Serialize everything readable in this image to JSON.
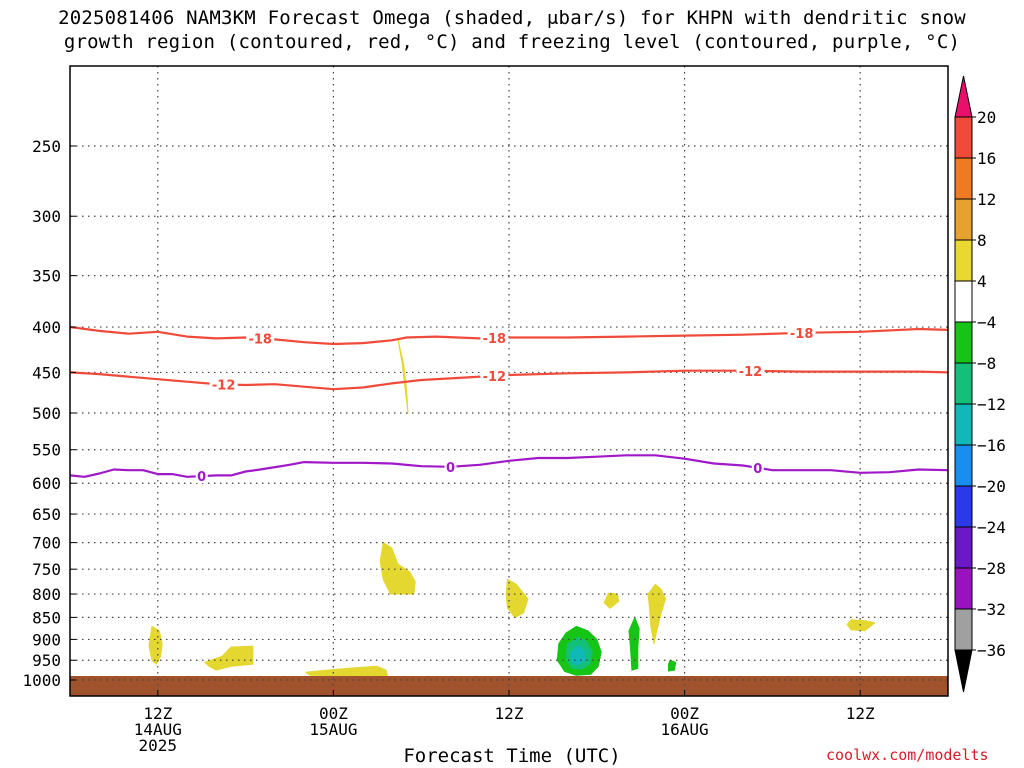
{
  "title_line1": "2025081406 NAM3KM Forecast Omega (shaded, μbar/s) for KHPN with dendritic snow",
  "title_line2": "growth region (contoured, red, °C) and freezing level (contoured, purple, °C)",
  "credit": "coolwx.com/modelts",
  "chart_data": {
    "type": "contour-timeheight",
    "xlabel": "Forecast Time (UTC)",
    "ylabel": "",
    "x_range_hours": [
      0,
      60
    ],
    "y_axis_scale": "log-pressure",
    "y_range_hPa": [
      200,
      1030
    ],
    "x_ticks": [
      {
        "hour": 6,
        "lines": [
          "12Z",
          "14AUG",
          "2025"
        ]
      },
      {
        "hour": 18,
        "lines": [
          "00Z",
          "15AUG"
        ]
      },
      {
        "hour": 30,
        "lines": [
          "12Z"
        ]
      },
      {
        "hour": 42,
        "lines": [
          "00Z",
          "16AUG"
        ]
      },
      {
        "hour": 54,
        "lines": [
          "12Z"
        ]
      }
    ],
    "y_ticks": [
      250,
      300,
      350,
      400,
      450,
      500,
      550,
      600,
      650,
      700,
      750,
      800,
      850,
      900,
      950,
      1000
    ],
    "grid": true,
    "colorbar": {
      "label_values": [
        "20",
        "16",
        "12",
        "8",
        "4",
        "−4",
        "−8",
        "−12",
        "−16",
        "−20",
        "−24",
        "−28",
        "−32",
        "−36"
      ],
      "colors": [
        "#e8106a",
        "#f24a3a",
        "#f07a22",
        "#e6a12e",
        "#e8d830",
        "#ffffff",
        "#16c416",
        "#13c07a",
        "#10b8b8",
        "#188ff0",
        "#2a3ae8",
        "#6a18c8",
        "#9a12c0",
        "#a0a0a0",
        "#000000"
      ]
    },
    "contours": [
      {
        "label": "-18",
        "color": "#f04a3a",
        "points": [
          [
            0,
            400
          ],
          [
            2,
            404
          ],
          [
            4,
            407
          ],
          [
            6,
            405
          ],
          [
            8,
            410
          ],
          [
            10,
            412
          ],
          [
            12,
            411
          ],
          [
            14,
            413
          ],
          [
            16,
            416
          ],
          [
            18,
            418
          ],
          [
            20,
            417
          ],
          [
            22,
            414
          ],
          [
            23,
            411
          ],
          [
            25,
            410
          ],
          [
            28,
            412
          ],
          [
            30,
            411
          ],
          [
            34,
            411
          ],
          [
            38,
            410
          ],
          [
            42,
            409
          ],
          [
            46,
            408
          ],
          [
            50,
            406
          ],
          [
            54,
            405
          ],
          [
            58,
            402
          ],
          [
            60,
            403
          ]
        ],
        "label_hours": [
          13,
          29,
          50
        ]
      },
      {
        "label": "-12",
        "color": "#f04a3a",
        "points": [
          [
            0,
            450
          ],
          [
            2,
            452
          ],
          [
            4,
            455
          ],
          [
            6,
            458
          ],
          [
            8,
            461
          ],
          [
            10,
            464
          ],
          [
            12,
            465
          ],
          [
            14,
            464
          ],
          [
            16,
            467
          ],
          [
            18,
            470
          ],
          [
            20,
            468
          ],
          [
            22,
            463
          ],
          [
            24,
            459
          ],
          [
            26,
            457
          ],
          [
            30,
            453
          ],
          [
            34,
            451
          ],
          [
            38,
            450
          ],
          [
            42,
            448
          ],
          [
            46,
            448
          ],
          [
            50,
            449
          ],
          [
            54,
            449
          ],
          [
            58,
            449
          ],
          [
            60,
            450
          ]
        ],
        "label_hours": [
          10.5,
          29,
          46.5
        ]
      },
      {
        "label": "0",
        "color": "#a018c8",
        "points": [
          [
            0,
            588
          ],
          [
            1,
            590
          ],
          [
            2,
            585
          ],
          [
            3,
            579
          ],
          [
            4,
            580
          ],
          [
            5,
            580
          ],
          [
            6,
            586
          ],
          [
            7,
            586
          ],
          [
            8,
            590
          ],
          [
            9,
            589
          ],
          [
            10,
            588
          ],
          [
            11,
            588
          ],
          [
            12,
            582
          ],
          [
            13,
            579
          ],
          [
            15,
            572
          ],
          [
            16,
            568
          ],
          [
            18,
            569
          ],
          [
            20,
            569
          ],
          [
            22,
            570
          ],
          [
            24,
            574
          ],
          [
            26,
            575
          ],
          [
            28,
            572
          ],
          [
            30,
            566
          ],
          [
            32,
            562
          ],
          [
            34,
            562
          ],
          [
            36,
            560
          ],
          [
            38,
            558
          ],
          [
            40,
            558
          ],
          [
            42,
            563
          ],
          [
            44,
            570
          ],
          [
            46,
            573
          ],
          [
            48,
            580
          ],
          [
            50,
            580
          ],
          [
            52,
            580
          ],
          [
            54,
            584
          ],
          [
            56,
            583
          ],
          [
            58,
            579
          ],
          [
            60,
            580
          ]
        ],
        "label_hours": [
          9,
          26,
          47
        ]
      }
    ],
    "shaded_regions": [
      {
        "value_class": "4 to 8",
        "color": "#e4d830",
        "points": [
          [
            22.4,
            412
          ],
          [
            22.8,
            440
          ],
          [
            23.0,
            470
          ],
          [
            23.1,
            500
          ],
          [
            22.9,
            470
          ],
          [
            22.7,
            440
          ]
        ]
      },
      {
        "value_class": "4 to 8",
        "color": "#e4d830",
        "points": [
          [
            21.4,
            700
          ],
          [
            22.0,
            710
          ],
          [
            22.4,
            740
          ],
          [
            23.2,
            755
          ],
          [
            23.6,
            775
          ],
          [
            23.5,
            800
          ],
          [
            21.9,
            800
          ],
          [
            21.4,
            770
          ],
          [
            21.2,
            735
          ]
        ]
      },
      {
        "value_class": "4 to 8",
        "color": "#e4d830",
        "points": [
          [
            5.6,
            870
          ],
          [
            6.1,
            880
          ],
          [
            6.3,
            910
          ],
          [
            6.2,
            940
          ],
          [
            5.9,
            960
          ],
          [
            5.6,
            950
          ],
          [
            5.4,
            915
          ]
        ]
      },
      {
        "value_class": "4 to 8",
        "color": "#e4d830",
        "points": [
          [
            9.2,
            955
          ],
          [
            10.4,
            940
          ],
          [
            11.0,
            918
          ],
          [
            12.5,
            916
          ],
          [
            12.5,
            960
          ],
          [
            11.0,
            965
          ],
          [
            10.0,
            975
          ],
          [
            9.5,
            965
          ]
        ]
      },
      {
        "value_class": "4 to 8",
        "color": "#e4d830",
        "points": [
          [
            16.1,
            980
          ],
          [
            17.5,
            975
          ],
          [
            19.0,
            970
          ],
          [
            21.0,
            965
          ],
          [
            21.6,
            975
          ],
          [
            21.7,
            990
          ],
          [
            20.5,
            993
          ],
          [
            18.5,
            990
          ],
          [
            16.4,
            988
          ]
        ]
      },
      {
        "value_class": "4 to 8",
        "color": "#e4d830",
        "points": [
          [
            29.9,
            770
          ],
          [
            30.5,
            780
          ],
          [
            31.3,
            810
          ],
          [
            31.0,
            840
          ],
          [
            30.4,
            850
          ],
          [
            29.9,
            830
          ],
          [
            29.8,
            800
          ]
        ]
      },
      {
        "value_class": "4 to 8",
        "color": "#e4d830",
        "points": [
          [
            36.8,
            798
          ],
          [
            37.4,
            800
          ],
          [
            37.5,
            815
          ],
          [
            36.9,
            830
          ],
          [
            36.5,
            818
          ]
        ]
      },
      {
        "value_class": "4 to 8",
        "color": "#e4d830",
        "points": [
          [
            40.0,
            780
          ],
          [
            40.4,
            790
          ],
          [
            40.7,
            810
          ],
          [
            40.4,
            840
          ],
          [
            40.1,
            880
          ],
          [
            39.9,
            910
          ],
          [
            39.7,
            870
          ],
          [
            39.6,
            830
          ],
          [
            39.5,
            800
          ]
        ]
      },
      {
        "value_class": "4 to 8",
        "color": "#e4d830",
        "points": [
          [
            53.4,
            855
          ],
          [
            54.3,
            857
          ],
          [
            55.0,
            862
          ],
          [
            54.3,
            880
          ],
          [
            53.4,
            878
          ],
          [
            53.1,
            866
          ]
        ]
      },
      {
        "value_class": "-4 to -8",
        "color": "#16c416",
        "points": [
          [
            38.6,
            850
          ],
          [
            38.9,
            875
          ],
          [
            38.8,
            920
          ],
          [
            38.8,
            970
          ],
          [
            38.4,
            975
          ],
          [
            38.3,
            920
          ],
          [
            38.2,
            880
          ]
        ]
      },
      {
        "value_class": "-4 to -8",
        "color": "#16c416",
        "points": [
          [
            41.0,
            950
          ],
          [
            41.4,
            955
          ],
          [
            41.3,
            975
          ],
          [
            40.9,
            977
          ],
          [
            40.9,
            960
          ]
        ]
      },
      {
        "value_class": "-4 to -8",
        "color": "#16c416",
        "points": [
          [
            34.6,
            870
          ],
          [
            35.4,
            880
          ],
          [
            36.0,
            900
          ],
          [
            36.3,
            930
          ],
          [
            36.1,
            965
          ],
          [
            35.6,
            985
          ],
          [
            34.6,
            988
          ],
          [
            33.8,
            978
          ],
          [
            33.3,
            950
          ],
          [
            33.4,
            910
          ],
          [
            33.9,
            885
          ]
        ]
      },
      {
        "value_class": "-8 to -12",
        "color": "#13c07a",
        "points": [
          [
            34.7,
            895
          ],
          [
            35.3,
            905
          ],
          [
            35.7,
            930
          ],
          [
            35.5,
            960
          ],
          [
            35.0,
            972
          ],
          [
            34.3,
            970
          ],
          [
            33.9,
            945
          ],
          [
            34.0,
            912
          ]
        ]
      },
      {
        "value_class": "-12 to -16",
        "color": "#10b8b8",
        "points": [
          [
            34.7,
            915
          ],
          [
            35.2,
            928
          ],
          [
            35.2,
            950
          ],
          [
            34.7,
            962
          ],
          [
            34.3,
            955
          ],
          [
            34.2,
            932
          ]
        ]
      }
    ],
    "ground_fill": {
      "from_hPa": 1000,
      "color": "#a0522d"
    }
  }
}
